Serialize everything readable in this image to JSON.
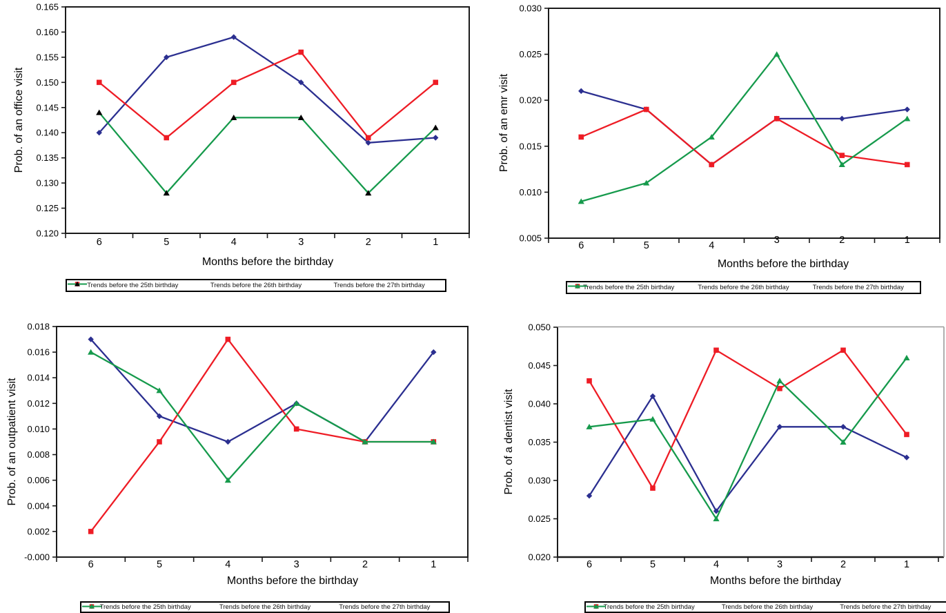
{
  "figure": {
    "background": "#ffffff",
    "x_axis_title": "Months before the birthday",
    "categories": [
      "6",
      "5",
      "4",
      "3",
      "2",
      "1"
    ],
    "legend_labels": [
      "Trends before the 25th birthday",
      "Trends before the 26th birthday",
      "Trends before the 27th birthday"
    ],
    "colors": {
      "series_25th": "#2b2f90",
      "series_26th": "#ee1c25",
      "series_27th": "#169a4c",
      "marker_black": "#000000",
      "axis": "#1a1a1a",
      "gray_border": "#9b9b9b"
    }
  },
  "chart_data": [
    {
      "type": "line",
      "title": "",
      "xlabel": "Months before the birthday",
      "ylabel": "Prob. of an office visit",
      "categories": [
        "6",
        "5",
        "4",
        "3",
        "2",
        "1"
      ],
      "ylim": [
        0.12,
        0.165
      ],
      "ytick_step": 0.005,
      "ydecimals": 3,
      "grid": false,
      "legend_position": "bottom",
      "series": [
        {
          "name": "Trends before the 25th birthday",
          "color": "#2b2f90",
          "marker": "diamond",
          "marker_color": "#2b2f90",
          "values": [
            0.14,
            0.155,
            0.159,
            0.15,
            0.138,
            0.139
          ]
        },
        {
          "name": "Trends before the 26th birthday",
          "color": "#ee1c25",
          "marker": "square",
          "marker_color": "#ee1c25",
          "values": [
            0.15,
            0.139,
            0.15,
            0.156,
            0.139,
            0.15
          ]
        },
        {
          "name": "Trends before the 27th birthday",
          "color": "#169a4c",
          "marker": "triangle",
          "marker_color": "#000000",
          "values": [
            0.144,
            0.128,
            0.143,
            0.143,
            0.128,
            0.141
          ]
        }
      ]
    },
    {
      "type": "line",
      "title": "",
      "xlabel": "Months before the birthday",
      "ylabel": "Prob. of an emr visit",
      "categories": [
        "6",
        "5",
        "4",
        "3",
        "2",
        "1"
      ],
      "ylim": [
        0.005,
        0.03
      ],
      "ytick_step": 0.005,
      "ydecimals": 3,
      "grid": false,
      "legend_position": "bottom",
      "series": [
        {
          "name": "Trends before the 25th birthday",
          "color": "#2b2f90",
          "marker": "diamond",
          "marker_color": "#2b2f90",
          "values": [
            0.021,
            0.019,
            0.013,
            0.018,
            0.018,
            0.019
          ]
        },
        {
          "name": "Trends before the 26th birthday",
          "color": "#ee1c25",
          "marker": "square",
          "marker_color": "#ee1c25",
          "values": [
            0.016,
            0.019,
            0.013,
            0.018,
            0.014,
            0.013
          ]
        },
        {
          "name": "Trends before the 27th birthday",
          "color": "#169a4c",
          "marker": "triangle",
          "marker_color": "#169a4c",
          "values": [
            0.009,
            0.011,
            0.016,
            0.025,
            0.013,
            0.018
          ]
        }
      ]
    },
    {
      "type": "line",
      "title": "",
      "xlabel": "Months before the birthday",
      "ylabel": "Prob. of an outpatient visit",
      "categories": [
        "6",
        "5",
        "4",
        "3",
        "2",
        "1"
      ],
      "ylim": [
        0.0,
        0.018
      ],
      "ytick_step": 0.002,
      "ydecimals": 3,
      "grid": false,
      "legend_position": "bottom",
      "series": [
        {
          "name": "Trends before the 25th birthday",
          "color": "#2b2f90",
          "marker": "diamond",
          "marker_color": "#2b2f90",
          "values": [
            0.017,
            0.011,
            0.009,
            0.012,
            0.009,
            0.016
          ]
        },
        {
          "name": "Trends before the 26th birthday",
          "color": "#ee1c25",
          "marker": "square",
          "marker_color": "#ee1c25",
          "values": [
            0.002,
            0.009,
            0.017,
            0.01,
            0.009,
            0.009
          ]
        },
        {
          "name": "Trends before the 27th birthday",
          "color": "#169a4c",
          "marker": "triangle",
          "marker_color": "#169a4c",
          "values": [
            0.016,
            0.013,
            0.006,
            0.012,
            0.009,
            0.009
          ]
        }
      ]
    },
    {
      "type": "line",
      "title": "",
      "xlabel": "Months before the birthday",
      "ylabel": "Prob. of a dentist visit",
      "categories": [
        "6",
        "5",
        "4",
        "3",
        "2",
        "1"
      ],
      "ylim": [
        0.02,
        0.05
      ],
      "ytick_step": 0.005,
      "ydecimals": 3,
      "grid": false,
      "legend_position": "bottom",
      "series": [
        {
          "name": "Trends before the 25th birthday",
          "color": "#2b2f90",
          "marker": "diamond",
          "marker_color": "#2b2f90",
          "values": [
            0.028,
            0.041,
            0.026,
            0.037,
            0.037,
            0.033
          ]
        },
        {
          "name": "Trends before the 26th birthday",
          "color": "#ee1c25",
          "marker": "square",
          "marker_color": "#ee1c25",
          "values": [
            0.043,
            0.029,
            0.047,
            0.042,
            0.047,
            0.036
          ]
        },
        {
          "name": "Trends before the 27th birthday",
          "color": "#169a4c",
          "marker": "triangle",
          "marker_color": "#169a4c",
          "values": [
            0.037,
            0.038,
            0.025,
            0.043,
            0.035,
            0.046
          ]
        }
      ]
    }
  ]
}
